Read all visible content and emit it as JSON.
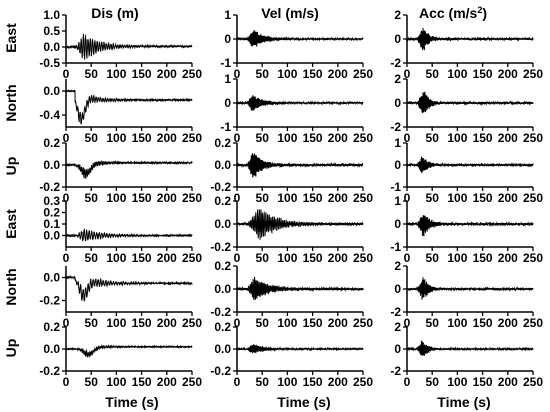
{
  "figure": {
    "column_titles": [
      "Dis (m)",
      "Vel (m/s)",
      "Acc (m/s2)"
    ],
    "row_labels": [
      "East",
      "North",
      "Up",
      "East",
      "North",
      "Up"
    ],
    "x_title": "Time (s)"
  },
  "chart_data": {
    "type": "line",
    "rows": 6,
    "cols": 3,
    "x_ticks": [
      0,
      50,
      100,
      150,
      200,
      250
    ],
    "xlim": [
      0,
      250
    ],
    "panels": [
      {
        "row": 0,
        "col": 0,
        "type": "line",
        "xlabel": "",
        "ylabel": "East",
        "ylim": [
          -0.5,
          1
        ],
        "y_ticks": [
          -0.5,
          0.0,
          0.5,
          1.0
        ],
        "y_tick_labels": [
          "-0.5",
          "0.0",
          "0.5",
          "1.0"
        ],
        "onset": 20,
        "peak_t": 35,
        "amp": 0.45,
        "decay": 35,
        "freq": 0.22,
        "noise": 0.02,
        "offset_final": 0.02,
        "dip": 0,
        "bump": 0,
        "seed": 11
      },
      {
        "row": 0,
        "col": 1,
        "type": "line",
        "xlabel": "",
        "ylabel": "",
        "ylim": [
          -1,
          1
        ],
        "y_ticks": [
          -1,
          0,
          1
        ],
        "y_tick_labels": [
          "-1",
          "0",
          "1"
        ],
        "onset": 20,
        "peak_t": 32,
        "amp": 0.45,
        "decay": 20,
        "freq": 0.45,
        "noise": 0.03,
        "offset_final": 0,
        "dip": 0,
        "bump": 0,
        "seed": 12
      },
      {
        "row": 0,
        "col": 2,
        "type": "line",
        "xlabel": "",
        "ylabel": "",
        "ylim": [
          -2,
          2
        ],
        "y_ticks": [
          -2,
          0,
          2
        ],
        "y_tick_labels": [
          "-2",
          "0",
          "2"
        ],
        "onset": 20,
        "peak_t": 32,
        "amp": 1.2,
        "decay": 12,
        "freq": 1.3,
        "noise": 0.08,
        "offset_final": 0,
        "dip": 0,
        "bump": 0,
        "seed": 13
      },
      {
        "row": 1,
        "col": 0,
        "type": "line",
        "xlabel": "",
        "ylabel": "North",
        "ylim": [
          -0.6,
          0.2
        ],
        "y_ticks": [
          -0.4,
          0.0
        ],
        "y_tick_labels": [
          "-0.4",
          "0.0"
        ],
        "onset": 18,
        "peak_t": 25,
        "amp": 0.12,
        "decay": 40,
        "freq": 0.22,
        "noise": 0.01,
        "offset_final": -0.15,
        "dip": -0.45,
        "bump": 0,
        "seed": 21
      },
      {
        "row": 1,
        "col": 1,
        "type": "line",
        "xlabel": "",
        "ylabel": "",
        "ylim": [
          -1,
          1
        ],
        "y_ticks": [
          -1,
          0,
          1
        ],
        "y_tick_labels": [
          "-1",
          "0",
          "1"
        ],
        "onset": 20,
        "peak_t": 30,
        "amp": 0.4,
        "decay": 20,
        "freq": 0.45,
        "noise": 0.03,
        "offset_final": 0,
        "dip": 0,
        "bump": 0,
        "seed": 22
      },
      {
        "row": 1,
        "col": 2,
        "type": "line",
        "xlabel": "",
        "ylabel": "",
        "ylim": [
          -2,
          2
        ],
        "y_ticks": [
          -2,
          0,
          2
        ],
        "y_tick_labels": [
          "-2",
          "0",
          "2"
        ],
        "onset": 20,
        "peak_t": 32,
        "amp": 1.3,
        "decay": 12,
        "freq": 1.3,
        "noise": 0.08,
        "offset_final": 0,
        "dip": 0,
        "bump": 0,
        "seed": 23
      },
      {
        "row": 2,
        "col": 0,
        "type": "line",
        "xlabel": "",
        "ylabel": "Up",
        "ylim": [
          -0.2,
          0.2
        ],
        "y_ticks": [
          -0.2,
          0.0,
          0.2
        ],
        "y_tick_labels": [
          "-0.2",
          "0.0",
          "0.2"
        ],
        "onset": 20,
        "peak_t": 35,
        "amp": 0.05,
        "decay": 30,
        "freq": 0.3,
        "noise": 0.005,
        "offset_final": 0.02,
        "dip": -0.08,
        "bump": 0.0,
        "seed": 31
      },
      {
        "row": 2,
        "col": 1,
        "type": "line",
        "xlabel": "",
        "ylabel": "",
        "ylim": [
          -0.2,
          0.2
        ],
        "y_ticks": [
          -0.2,
          0.0,
          0.2
        ],
        "y_tick_labels": [
          "-0.2",
          "0.0",
          "0.2"
        ],
        "onset": 20,
        "peak_t": 32,
        "amp": 0.14,
        "decay": 18,
        "freq": 0.5,
        "noise": 0.01,
        "offset_final": 0,
        "dip": 0,
        "bump": 0,
        "seed": 32
      },
      {
        "row": 2,
        "col": 2,
        "type": "line",
        "xlabel": "",
        "ylabel": "",
        "ylim": [
          -1,
          1
        ],
        "y_ticks": [
          -1,
          0,
          1
        ],
        "y_tick_labels": [
          "-1",
          "0",
          "1"
        ],
        "onset": 20,
        "peak_t": 30,
        "amp": 0.5,
        "decay": 12,
        "freq": 1.3,
        "noise": 0.04,
        "offset_final": 0,
        "dip": 0,
        "bump": 0,
        "seed": 33
      },
      {
        "row": 3,
        "col": 0,
        "type": "line",
        "xlabel": "",
        "ylabel": "East",
        "ylim": [
          -0.1,
          0.3
        ],
        "y_ticks": [
          0.0,
          0.1,
          0.2,
          0.3
        ],
        "y_tick_labels": [
          "0.0",
          "0.1",
          "0.2",
          "0.3"
        ],
        "onset": 20,
        "peak_t": 35,
        "amp": 0.06,
        "decay": 40,
        "freq": 0.2,
        "noise": 0.004,
        "offset_final": 0.0,
        "dip": 0,
        "bump": 0,
        "seed": 41
      },
      {
        "row": 3,
        "col": 1,
        "type": "line",
        "xlabel": "",
        "ylabel": "",
        "ylim": [
          -0.2,
          0.2
        ],
        "y_ticks": [
          -0.2,
          0.0,
          0.2
        ],
        "y_tick_labels": [
          "-0.2",
          "0.0",
          "0.2"
        ],
        "onset": 20,
        "peak_t": 45,
        "amp": 0.15,
        "decay": 35,
        "freq": 0.3,
        "noise": 0.01,
        "offset_final": 0,
        "dip": 0,
        "bump": 0,
        "seed": 42
      },
      {
        "row": 3,
        "col": 2,
        "type": "line",
        "xlabel": "",
        "ylabel": "",
        "ylim": [
          -1,
          1
        ],
        "y_ticks": [
          -1,
          0,
          1
        ],
        "y_tick_labels": [
          "-1",
          "0",
          "1"
        ],
        "onset": 20,
        "peak_t": 32,
        "amp": 0.6,
        "decay": 14,
        "freq": 1.3,
        "noise": 0.05,
        "offset_final": 0,
        "dip": 0,
        "bump": 0,
        "seed": 43
      },
      {
        "row": 4,
        "col": 0,
        "type": "line",
        "xlabel": "",
        "ylabel": "North",
        "ylim": [
          -0.3,
          0.1
        ],
        "y_ticks": [
          -0.2,
          0.0
        ],
        "y_tick_labels": [
          "-0.2",
          "0.0"
        ],
        "onset": 18,
        "peak_t": 30,
        "amp": 0.07,
        "decay": 45,
        "freq": 0.2,
        "noise": 0.005,
        "offset_final": -0.05,
        "dip": -0.15,
        "bump": 0,
        "seed": 51
      },
      {
        "row": 4,
        "col": 1,
        "type": "line",
        "xlabel": "",
        "ylabel": "",
        "ylim": [
          -0.2,
          0.2
        ],
        "y_ticks": [
          -0.2,
          0.0,
          0.2
        ],
        "y_tick_labels": [
          "-0.2",
          "0.0",
          "0.2"
        ],
        "onset": 20,
        "peak_t": 35,
        "amp": 0.12,
        "decay": 28,
        "freq": 0.35,
        "noise": 0.01,
        "offset_final": 0,
        "dip": 0,
        "bump": 0,
        "seed": 52
      },
      {
        "row": 4,
        "col": 2,
        "type": "line",
        "xlabel": "",
        "ylabel": "",
        "ylim": [
          -2,
          2
        ],
        "y_ticks": [
          -2,
          0,
          2
        ],
        "y_tick_labels": [
          "-2",
          "0",
          "2"
        ],
        "onset": 20,
        "peak_t": 32,
        "amp": 1.2,
        "decay": 12,
        "freq": 1.3,
        "noise": 0.08,
        "offset_final": 0,
        "dip": 0,
        "bump": 0,
        "seed": 53
      },
      {
        "row": 5,
        "col": 0,
        "type": "line",
        "xlabel": "Time (s)",
        "ylabel": "Up",
        "ylim": [
          -0.2,
          0.2
        ],
        "y_ticks": [
          -0.2,
          0.0,
          0.2
        ],
        "y_tick_labels": [
          "-0.2",
          "0.0",
          "0.2"
        ],
        "onset": 20,
        "peak_t": 40,
        "amp": 0.03,
        "decay": 35,
        "freq": 0.3,
        "noise": 0.003,
        "offset_final": 0.02,
        "dip": -0.05,
        "bump": 0,
        "seed": 61
      },
      {
        "row": 5,
        "col": 1,
        "type": "line",
        "xlabel": "Time (s)",
        "ylabel": "",
        "ylim": [
          -0.2,
          0.2
        ],
        "y_ticks": [
          -0.2,
          0.0,
          0.2
        ],
        "y_tick_labels": [
          "-0.2",
          "0.0",
          "0.2"
        ],
        "onset": 20,
        "peak_t": 32,
        "amp": 0.05,
        "decay": 20,
        "freq": 0.5,
        "noise": 0.005,
        "offset_final": 0,
        "dip": 0,
        "bump": 0,
        "seed": 62
      },
      {
        "row": 5,
        "col": 2,
        "type": "line",
        "xlabel": "Time (s)",
        "ylabel": "",
        "ylim": [
          -2,
          2
        ],
        "y_ticks": [
          -2,
          0,
          2
        ],
        "y_tick_labels": [
          "-2",
          "0",
          "2"
        ],
        "onset": 20,
        "peak_t": 30,
        "amp": 0.9,
        "decay": 12,
        "freq": 1.3,
        "noise": 0.06,
        "offset_final": 0,
        "dip": 0,
        "bump": 0,
        "seed": 63
      }
    ]
  }
}
